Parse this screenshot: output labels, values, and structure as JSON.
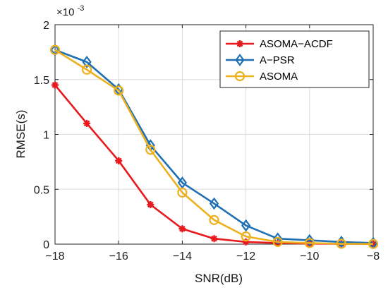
{
  "chart_data": {
    "type": "line",
    "title": "",
    "xlabel": "SNR(dB)",
    "ylabel": "RMSE(s)",
    "x": [
      -18,
      -17,
      -16,
      -15,
      -14,
      -13,
      -12,
      -11,
      -10,
      -9,
      -8
    ],
    "xlim": [
      -18,
      -8
    ],
    "ylim": [
      0,
      2
    ],
    "x_ticks": [
      -18,
      -16,
      -14,
      -12,
      -10,
      -8
    ],
    "x_tick_labels": [
      "−18",
      "−16",
      "−14",
      "−12",
      "−10",
      "−8"
    ],
    "y_ticks": [
      0,
      0.5,
      1,
      1.5,
      2
    ],
    "y_tick_labels": [
      "0",
      "0.5",
      "1",
      "1.5",
      "2"
    ],
    "y_exponent": {
      "base": "×10",
      "power": "-3"
    },
    "grid": true,
    "legend_position": "top-right",
    "series": [
      {
        "name": "ASOMA−ACDF",
        "color": "#e8181c",
        "marker": "asterisk",
        "values": [
          1.45,
          1.1,
          0.76,
          0.36,
          0.14,
          0.05,
          0.02,
          0.01,
          0.005,
          0.003,
          0.002
        ]
      },
      {
        "name": "A−PSR",
        "color": "#1f6fb4",
        "marker": "diamond",
        "values": [
          1.77,
          1.66,
          1.41,
          0.9,
          0.56,
          0.37,
          0.17,
          0.05,
          0.035,
          0.02,
          0.01
        ]
      },
      {
        "name": "ASOMA",
        "color": "#edb120",
        "marker": "circle",
        "values": [
          1.77,
          1.59,
          1.4,
          0.86,
          0.47,
          0.22,
          0.07,
          0.02,
          0.01,
          0.003,
          0.002
        ]
      }
    ]
  }
}
